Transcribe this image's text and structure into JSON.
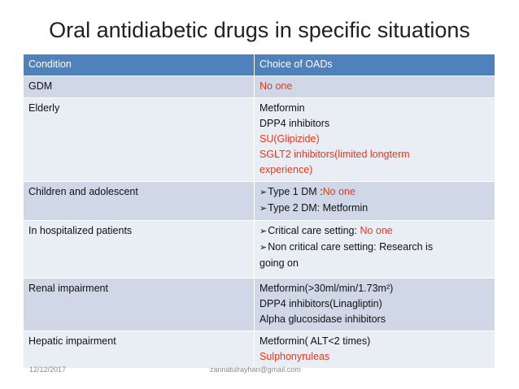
{
  "title": "Oral antidiabetic drugs in specific situations",
  "header": {
    "condition": "Condition",
    "choice": "Choice  of OADs"
  },
  "rows": {
    "gdm": {
      "condition": "GDM",
      "l1": "No one"
    },
    "elderly": {
      "condition": "Elderly",
      "l1": "Metformin",
      "l2": "DPP4 inhibitors",
      "l3": "SU(Glipizide)",
      "l4": "SGLT2 inhibitors(limited longterm",
      "l5": "experience)"
    },
    "children": {
      "condition": "Children and adolescent",
      "l1a": "Type 1 DM :",
      "l1b": "No one",
      "l2": "Type 2 DM: Metformin"
    },
    "hospital": {
      "condition": "In hospitalized patients",
      "l1a": "Critical care setting: ",
      "l1b": "No one",
      "l2": "Non critical care setting: Research is",
      "l3": "going on"
    },
    "renal": {
      "condition": "Renal impairment",
      "l1": "Metformin(>30ml/min/1.73m²)",
      "l2": "DPP4 inhibitors(Linagliptin)",
      "l3": "Alpha glucosidase inhibitors"
    },
    "hepatic": {
      "condition": "Hepatic impairment",
      "l1": "Metformin( ALT<2 times)",
      "l2": "Sulphonyruleas"
    }
  },
  "footer": {
    "date": "12/12/2017",
    "email": "zannatulrayhan@gmail.com"
  },
  "icons": {
    "check": "checkmark-arrow-icon"
  },
  "colors": {
    "header_bg": "#4f81bd",
    "row_dark": "#d0d8e8",
    "row_light": "#e9edf4",
    "highlight": "#e8381e"
  }
}
